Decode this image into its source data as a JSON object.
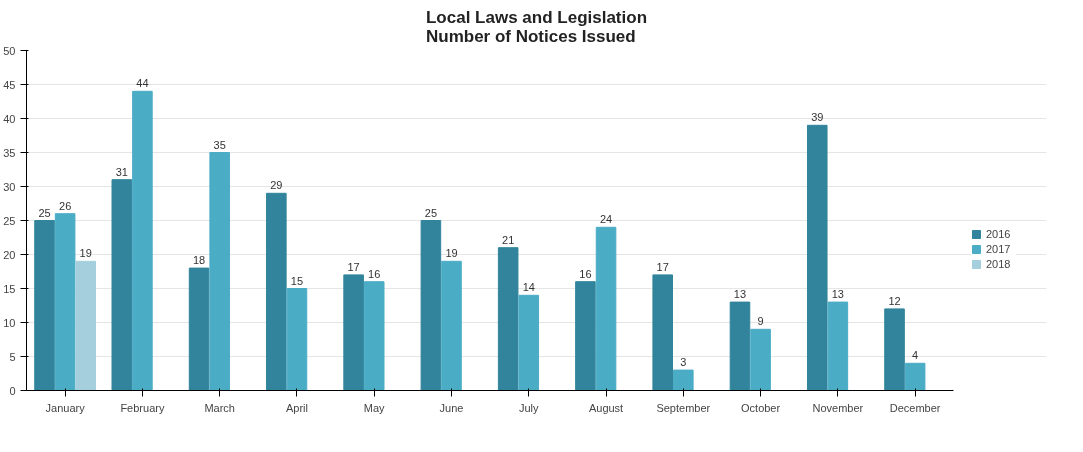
{
  "chart_data": {
    "type": "bar",
    "title": "Local Laws and Legislation\nNumber of Notices Issued",
    "categories": [
      "January",
      "February",
      "March",
      "April",
      "May",
      "June",
      "July",
      "August",
      "September",
      "October",
      "November",
      "December"
    ],
    "series": [
      {
        "name": "2016",
        "color": "#31849b",
        "values": [
          25,
          31,
          18,
          29,
          17,
          25,
          21,
          16,
          17,
          13,
          39,
          12
        ]
      },
      {
        "name": "2017",
        "color": "#4bacc6",
        "values": [
          26,
          44,
          35,
          15,
          16,
          19,
          14,
          24,
          3,
          9,
          13,
          4
        ]
      },
      {
        "name": "2018",
        "color": "#a5cfdc",
        "values": [
          19,
          null,
          null,
          null,
          null,
          null,
          null,
          null,
          null,
          null,
          null,
          null
        ]
      }
    ],
    "ylim": [
      0,
      50
    ],
    "yticks": [
      0,
      5,
      10,
      15,
      20,
      25,
      30,
      35,
      40,
      45,
      50
    ],
    "grid": "y",
    "legend": "right",
    "data_labels": true
  }
}
